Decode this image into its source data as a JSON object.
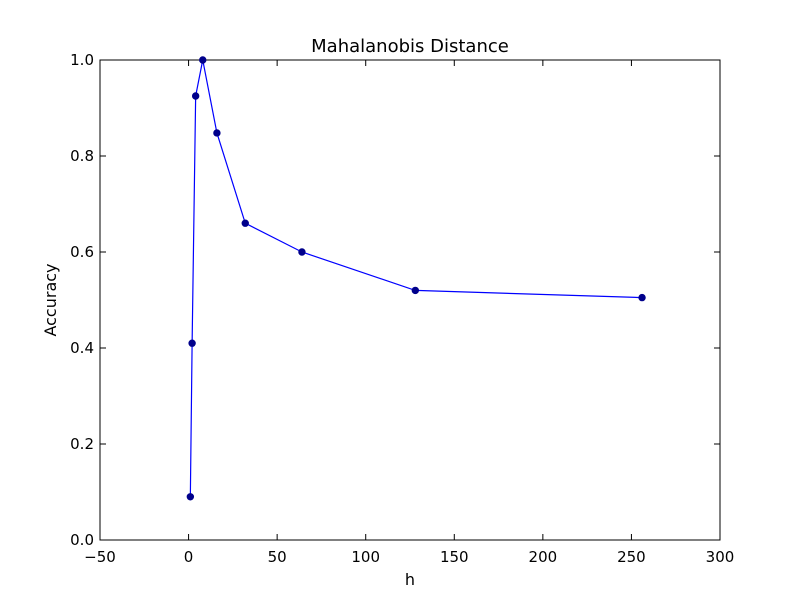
{
  "chart_data": {
    "type": "line",
    "title": "Mahalanobis Distance",
    "xlabel": "h",
    "ylabel": "Accuracy",
    "xlim": [
      -50,
      300
    ],
    "ylim": [
      0.0,
      1.0
    ],
    "xticks": [
      -50,
      0,
      50,
      100,
      150,
      200,
      250,
      300
    ],
    "yticks": [
      0.0,
      0.2,
      0.4,
      0.6,
      0.8,
      1.0
    ],
    "xtick_labels": [
      "−50",
      "0",
      "50",
      "100",
      "150",
      "200",
      "250",
      "300"
    ],
    "ytick_labels": [
      "0.0",
      "0.2",
      "0.4",
      "0.6",
      "0.8",
      "1.0"
    ],
    "grid": false,
    "series": [
      {
        "x": [
          1,
          2,
          4,
          8,
          16,
          32,
          64,
          128,
          256
        ],
        "y": [
          0.09,
          0.41,
          0.925,
          1.0,
          0.848,
          0.66,
          0.6,
          0.52,
          0.505
        ],
        "color": "#0000ff",
        "marker_color": "#00008b"
      }
    ]
  }
}
